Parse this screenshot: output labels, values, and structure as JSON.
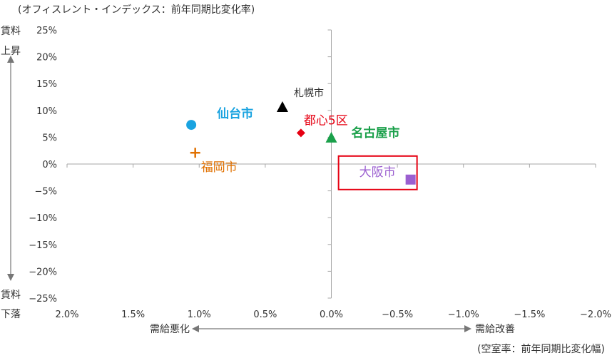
{
  "chart_data": {
    "type": "scatter",
    "title": "(オフィスレント・インデックス：前年同期比変化率)",
    "x_caption": "(空室率：前年同期比変化幅)",
    "xlim": [
      2.0,
      -2.0
    ],
    "ylim": [
      -25,
      25
    ],
    "x_ticks": [
      2.0,
      1.5,
      1.0,
      0.5,
      0.0,
      -0.5,
      -1.0,
      -1.5,
      -2.0
    ],
    "x_tick_labels": [
      "2.0%",
      "1.5%",
      "1.0%",
      "0.5%",
      "0.0%",
      "−0.5%",
      "−1.0%",
      "−1.5%",
      "−2.0%"
    ],
    "y_ticks": [
      25,
      20,
      15,
      10,
      5,
      0,
      -5,
      -10,
      -15,
      -20,
      -25
    ],
    "y_tick_labels": [
      "25%",
      "20%",
      "15%",
      "10%",
      "5%",
      "0%",
      "−5%",
      "−10%",
      "−15%",
      "−20%",
      "−25%"
    ],
    "y_axis_top_label": [
      "賃料",
      "上昇"
    ],
    "y_axis_bottom_label": [
      "賃料",
      "下落"
    ],
    "x_axis_left_label": "需給悪化",
    "x_axis_right_label": "需給改善",
    "points": [
      {
        "name": "仙台市",
        "x": 1.06,
        "y": 7.3,
        "marker": "circle",
        "color": "#1aa3e0",
        "label_bold": true
      },
      {
        "name": "札幌市",
        "x": 0.37,
        "y": 10.5,
        "marker": "triangle",
        "color": "#000000",
        "label_bold": false
      },
      {
        "name": "都心5区",
        "x": 0.23,
        "y": 5.8,
        "marker": "diamond",
        "color": "#e60012",
        "label_bold": false
      },
      {
        "name": "名古屋市",
        "x": 0.0,
        "y": 4.8,
        "marker": "triangle",
        "color": "#1aa04a",
        "label_bold": true
      },
      {
        "name": "福岡市",
        "x": 1.03,
        "y": 2.1,
        "marker": "plus",
        "color": "#e07000",
        "label_bold": false
      },
      {
        "name": "大阪市",
        "x": -0.6,
        "y": -2.9,
        "marker": "square",
        "color": "#9b5fd0",
        "label_bold": false
      }
    ],
    "highlight_point": "大阪市",
    "highlight_color": "#e60012",
    "axis_color": "#a6a6a6",
    "grid": false
  }
}
